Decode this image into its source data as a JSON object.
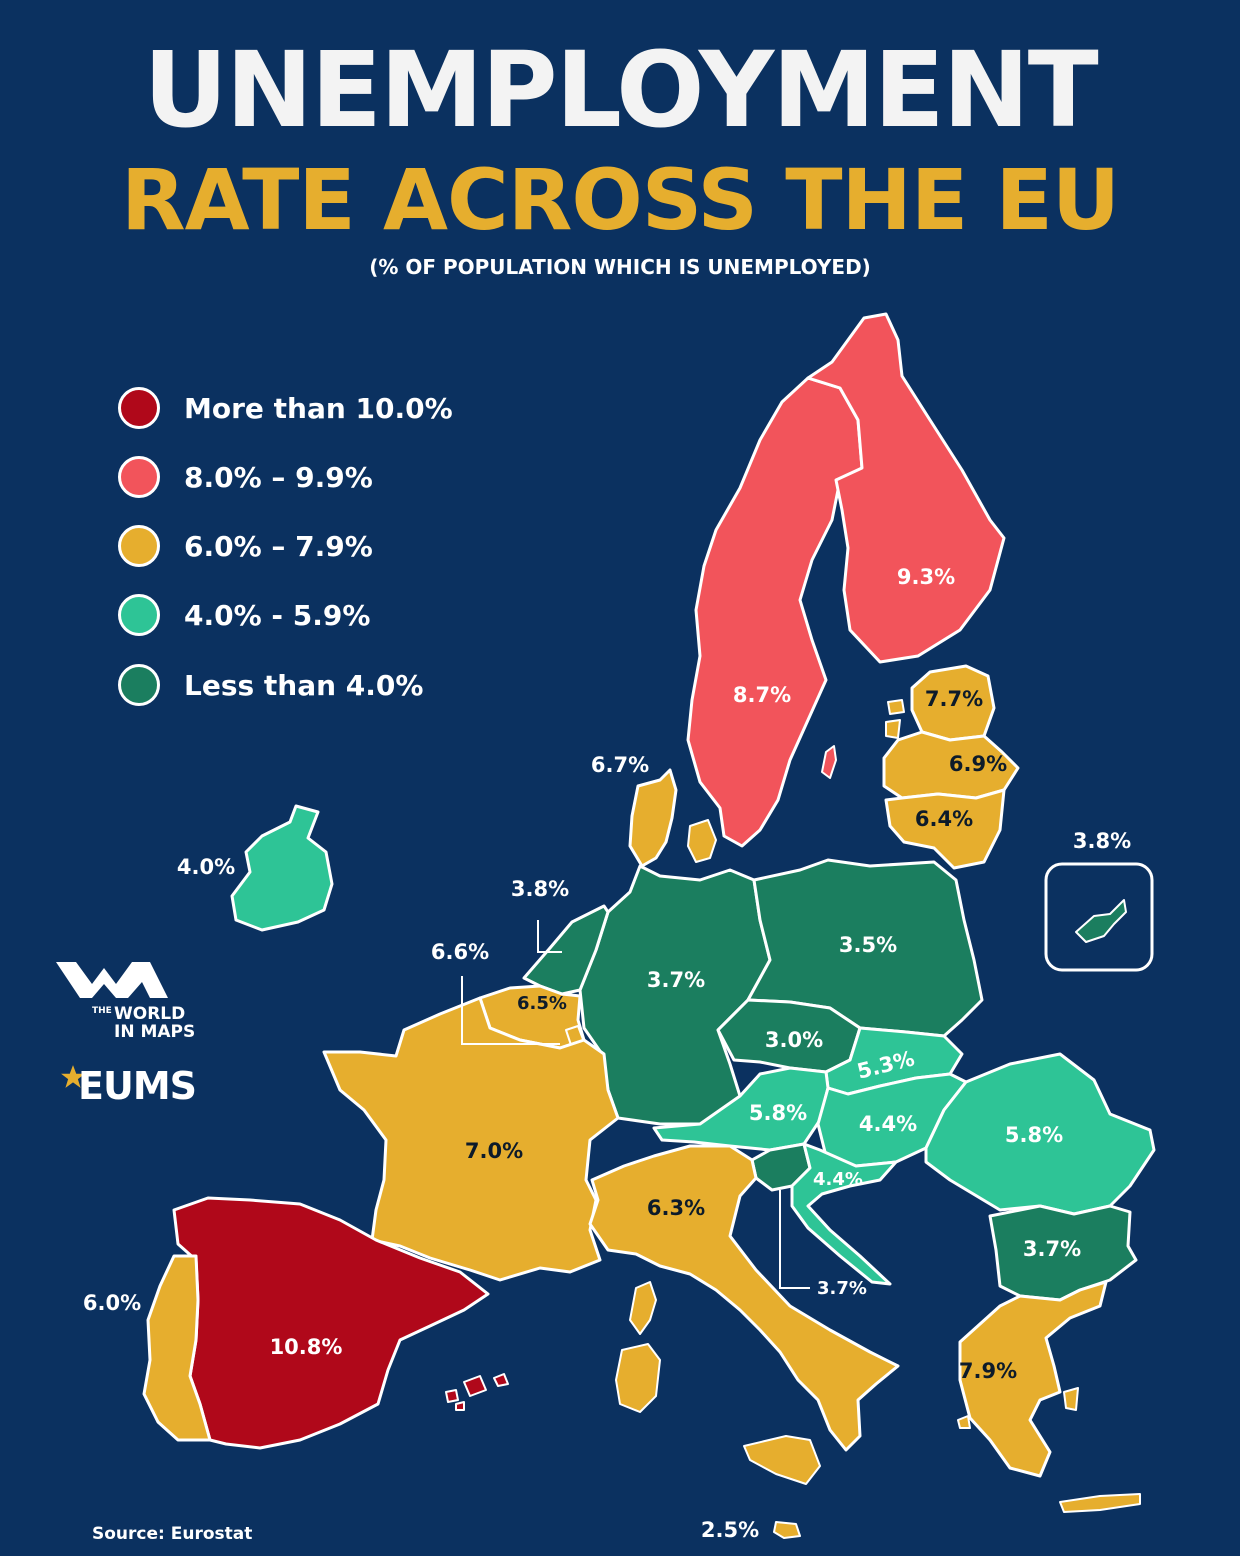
{
  "title": {
    "line1": "UNEMPLOYMENT",
    "line2": "RATE ACROSS THE EU",
    "subtitle": "(% OF POPULATION WHICH IS UNEMPLOYED)"
  },
  "colors": {
    "background": "#0b3160",
    "red_dark": "#b0081a",
    "red_light": "#f2545b",
    "amber": "#e6ae2e",
    "green_light": "#2ec496",
    "green_dark": "#1b7e5f",
    "border": "#ffffff"
  },
  "legend": [
    {
      "label": "More than 10.0%",
      "color": "#b0081a"
    },
    {
      "label": "8.0% – 9.9%",
      "color": "#f2545b"
    },
    {
      "label": "6.0% – 7.9%",
      "color": "#e6ae2e"
    },
    {
      "label": "4.0% - 5.9%",
      "color": "#2ec496"
    },
    {
      "label": "Less than 4.0%",
      "color": "#1b7e5f"
    }
  ],
  "countries": {
    "sweden": {
      "value": "8.7%"
    },
    "finland": {
      "value": "9.3%"
    },
    "estonia": {
      "value": "7.7%"
    },
    "latvia": {
      "value": "6.9%"
    },
    "lithuania": {
      "value": "6.4%"
    },
    "denmark": {
      "value": "6.7%"
    },
    "ireland": {
      "value": "4.0%"
    },
    "netherlands": {
      "value": "3.8%"
    },
    "belgium": {
      "value": "6.6%"
    },
    "luxembourg": {
      "value": "6.5%"
    },
    "germany": {
      "value": "3.7%"
    },
    "poland": {
      "value": "3.5%"
    },
    "czechia": {
      "value": "3.0%"
    },
    "slovakia": {
      "value": "5.3%"
    },
    "austria": {
      "value": "5.8%"
    },
    "hungary": {
      "value": "4.4%"
    },
    "romania": {
      "value": "5.8%"
    },
    "croatia": {
      "value": "4.4%"
    },
    "slovenia": {
      "value": "3.7%"
    },
    "bulgaria": {
      "value": "3.7%"
    },
    "france": {
      "value": "7.0%"
    },
    "italy": {
      "value": "6.3%"
    },
    "spain": {
      "value": "10.8%"
    },
    "portugal": {
      "value": "6.0%"
    },
    "greece": {
      "value": "7.9%"
    },
    "malta": {
      "value": "2.5%"
    },
    "cyprus": {
      "value": "3.8%"
    }
  },
  "logo": {
    "the": "THE",
    "world": "WORLD",
    "in_maps": "IN MAPS",
    "eums": "EUMS"
  },
  "source": "Source: Eurostat"
}
